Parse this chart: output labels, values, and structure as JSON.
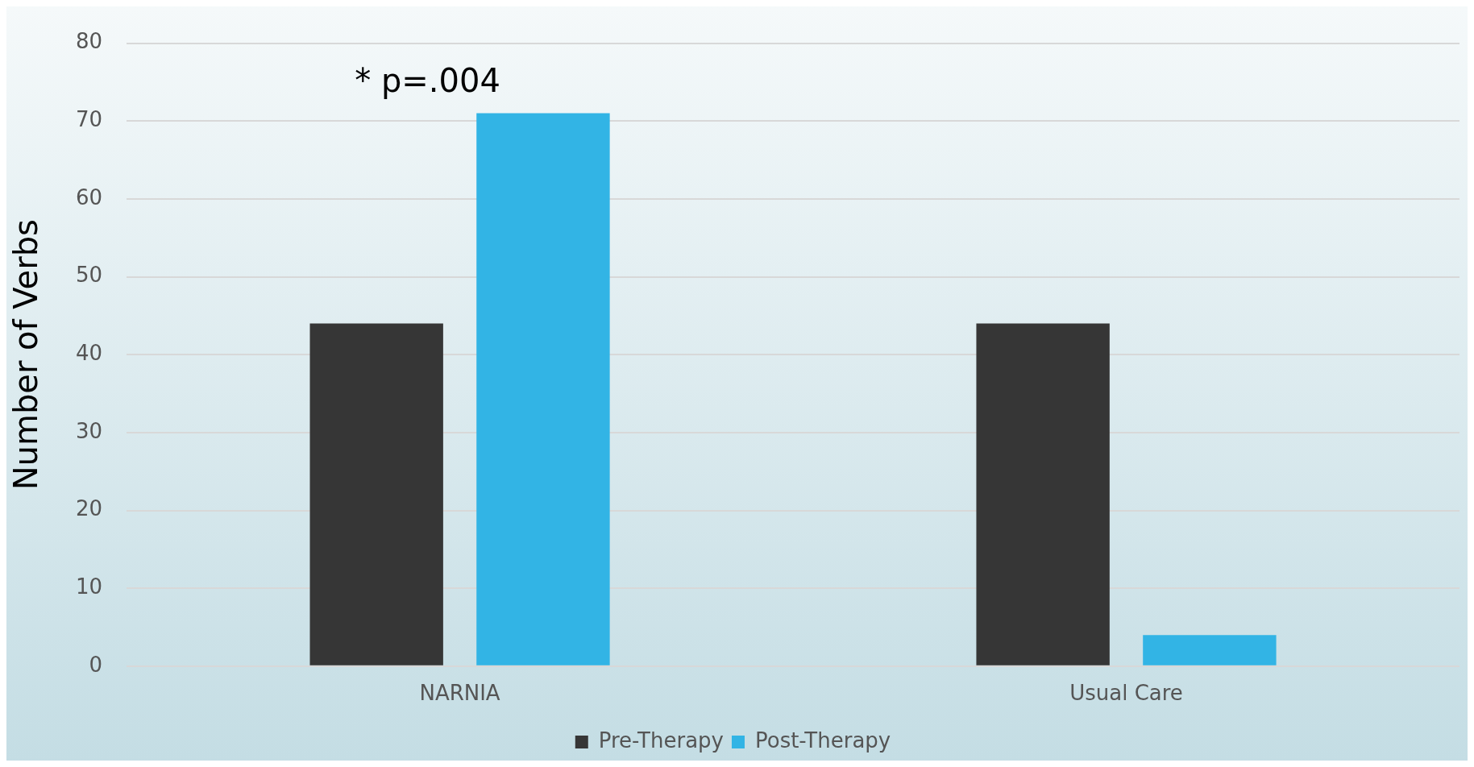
{
  "chart_data": {
    "type": "bar",
    "ylabel": "Number of Verbs",
    "categories": [
      "NARNIA",
      "Usual Care"
    ],
    "series": [
      {
        "name": "Pre-Therapy",
        "color": "#363636",
        "values": [
          44,
          44
        ]
      },
      {
        "name": "Post-Therapy",
        "color": "#32b4e5",
        "values": [
          71,
          4
        ]
      }
    ],
    "ylim": [
      0,
      80
    ],
    "yticks": [
      0,
      10,
      20,
      30,
      40,
      50,
      60,
      70,
      80
    ],
    "grid": "y",
    "legend": "bottom",
    "annotations": [
      "* p=.004"
    ]
  }
}
